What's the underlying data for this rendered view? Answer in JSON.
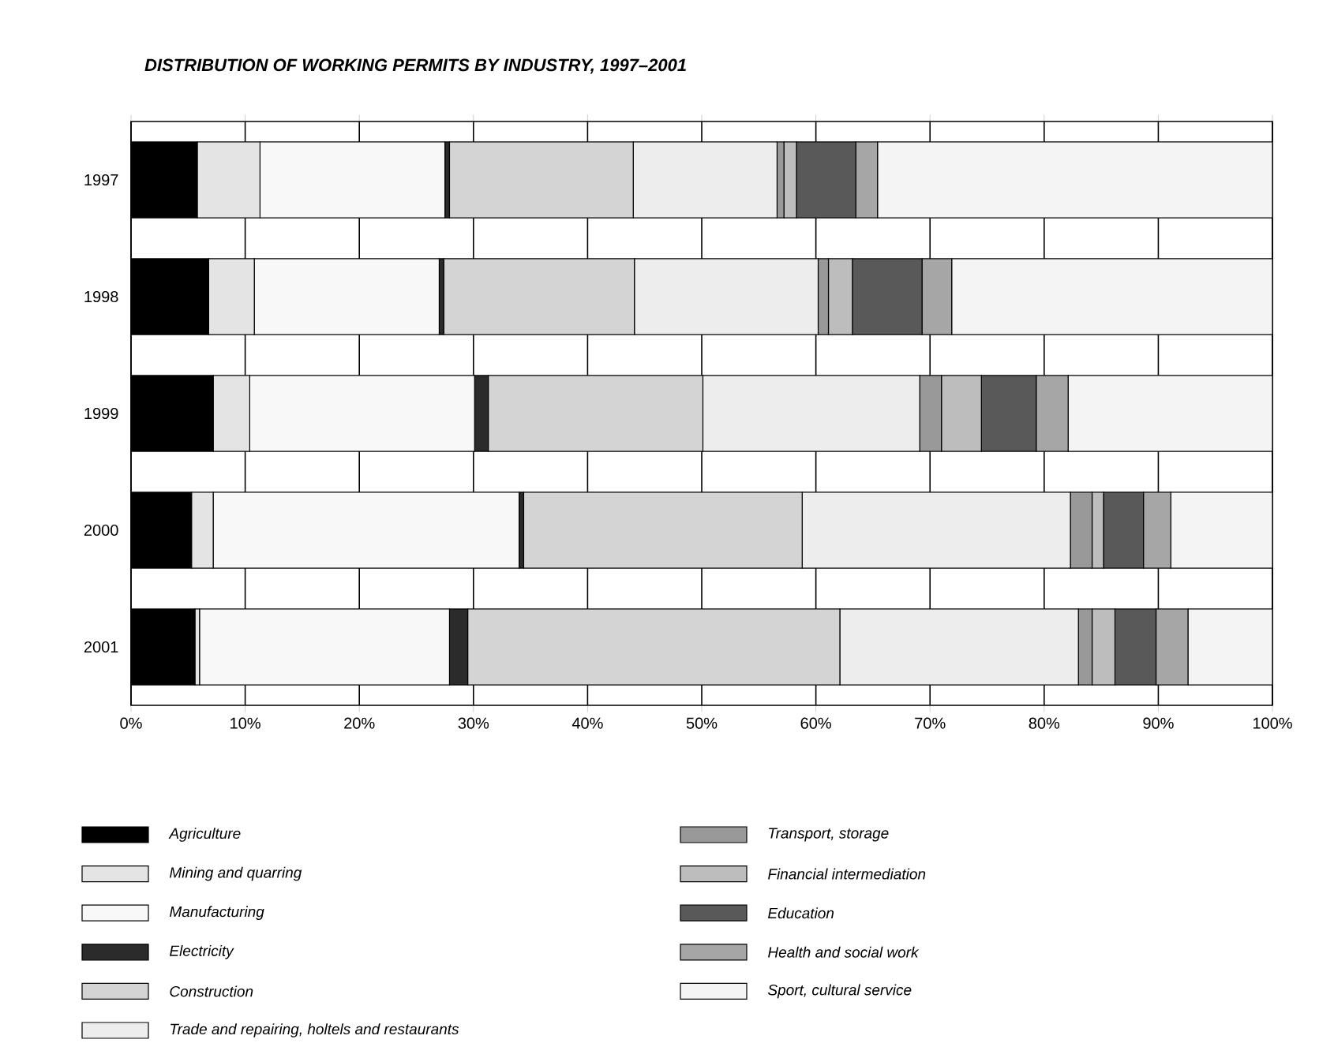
{
  "chart_data": {
    "type": "bar",
    "title": "DISTRIBUTION OF WORKING PERMITS BY INDUSTRY, 1997–2001",
    "orientation": "horizontal",
    "stacked": true,
    "grid": "x",
    "legend": "bottom",
    "categories": [
      "1997",
      "1998",
      "1999",
      "2000",
      "2001"
    ],
    "xlim": [
      0,
      100
    ],
    "xticks": [
      {
        "value": 0,
        "label": "0%"
      },
      {
        "value": 10,
        "label": "10%"
      },
      {
        "value": 20,
        "label": "20%"
      },
      {
        "value": 30,
        "label": "30%"
      },
      {
        "value": 40,
        "label": "40%"
      },
      {
        "value": 50,
        "label": "50%"
      },
      {
        "value": 60,
        "label": "60%"
      },
      {
        "value": 70,
        "label": "70%"
      },
      {
        "value": 80,
        "label": "80%"
      },
      {
        "value": 90,
        "label": "90%"
      },
      {
        "value": 100,
        "label": "100%"
      }
    ],
    "series": [
      {
        "name": "Agriculture",
        "color": "#000000",
        "values": [
          5.8,
          6.8,
          7.2,
          5.3,
          5.6
        ]
      },
      {
        "name": "Mining and quarring",
        "color": "#e4e4e4",
        "values": [
          5.5,
          4.0,
          3.2,
          1.9,
          0.4
        ]
      },
      {
        "name": "Manufacturing",
        "color": "#f8f8f8",
        "values": [
          16.2,
          16.2,
          19.7,
          26.8,
          21.9
        ]
      },
      {
        "name": "Electricity",
        "color": "#2b2b2b",
        "values": [
          0.4,
          0.4,
          1.2,
          0.4,
          1.6
        ]
      },
      {
        "name": "Construction",
        "color": "#d4d4d4",
        "values": [
          16.1,
          16.7,
          18.8,
          24.4,
          32.6
        ]
      },
      {
        "name": "Trade and repairing, holtels and restaurants",
        "color": "#ededed",
        "values": [
          12.6,
          16.1,
          19.0,
          23.5,
          20.9
        ]
      },
      {
        "name": "Transport, storage",
        "color": "#999999",
        "values": [
          0.6,
          0.9,
          1.9,
          1.9,
          1.2
        ]
      },
      {
        "name": "Financial intermediation",
        "color": "#bdbdbd",
        "values": [
          1.1,
          2.1,
          3.5,
          1.0,
          2.0
        ]
      },
      {
        "name": "Education",
        "color": "#595959",
        "values": [
          5.2,
          6.1,
          4.8,
          3.5,
          3.6
        ]
      },
      {
        "name": "Health and social work",
        "color": "#a6a6a6",
        "values": [
          1.9,
          2.6,
          2.8,
          2.4,
          2.8
        ]
      },
      {
        "name": "Sport, cultural service",
        "color": "#f4f4f4",
        "values": [
          34.6,
          28.1,
          17.9,
          8.9,
          7.4
        ]
      }
    ]
  }
}
